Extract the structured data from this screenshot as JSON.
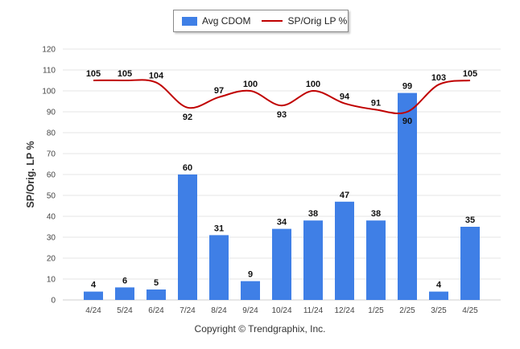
{
  "chart_data": {
    "type": "bar+line",
    "categories": [
      "4/24",
      "5/24",
      "6/24",
      "7/24",
      "8/24",
      "9/24",
      "10/24",
      "11/24",
      "12/24",
      "1/25",
      "2/25",
      "3/25",
      "4/25"
    ],
    "series": [
      {
        "name": "Avg CDOM",
        "type": "bar",
        "color": "#3f7fe6",
        "values": [
          4,
          6,
          5,
          60,
          31,
          9,
          34,
          38,
          47,
          38,
          99,
          4,
          35
        ]
      },
      {
        "name": "SP/Orig LP %",
        "type": "line",
        "color": "#c00000",
        "values": [
          105,
          105,
          104,
          92,
          97,
          100,
          93,
          100,
          94,
          91,
          90,
          103,
          105
        ]
      }
    ],
    "ylabel": "SP/Orig. LP %",
    "ylim": [
      0,
      120
    ],
    "yticks": [
      0,
      10,
      20,
      30,
      40,
      50,
      60,
      70,
      80,
      90,
      100,
      110,
      120
    ],
    "grid": true,
    "legend_position": "top-center"
  },
  "footer": {
    "copyright": "Copyright © Trendgraphix, Inc."
  }
}
